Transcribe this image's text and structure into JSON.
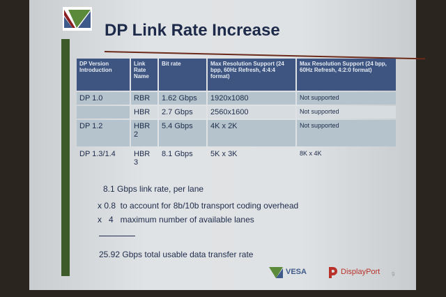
{
  "title": "DP Link Rate Increase",
  "table": {
    "headers": [
      "DP Version Introduction",
      "Link Rate Name",
      "Bit rate",
      "Max Resolution Support (24 bpp, 60Hz Refresh, 4:4:4 format)",
      "Max Resolution Support (24 bpp, 60Hz Refresh, 4:2:0 format)"
    ],
    "rows": [
      [
        "DP 1.0",
        "RBR",
        "1.62 Gbps",
        "1920x1080",
        "Not supported"
      ],
      [
        "",
        "HBR",
        "2.7 Gbps",
        "2560x1600",
        "Not supported"
      ],
      [
        "DP 1.2",
        "HBR 2",
        "5.4 Gbps",
        "4K x 2K",
        "Not supported"
      ],
      [
        "DP 1.3/1.4",
        "HBR 3",
        "8.1 Gbps",
        "5K x 3K",
        "8K x 4K"
      ]
    ]
  },
  "calc": {
    "line1": "8.1 Gbps link rate, per lane",
    "line2": "x 0.8  to account for 8b/10b transport coding overhead",
    "line3": "x   4   maximum number of available lanes",
    "result": "25.92 Gbps total usable data transfer rate"
  },
  "footer": {
    "vesa": "VESA",
    "displayport": "DisplayPort",
    "page": "9"
  },
  "colors": {
    "header": "#3d5580",
    "title": "#1d2a4a",
    "accent_green": "#3d5a2a",
    "dp_red": "#b8322a"
  }
}
